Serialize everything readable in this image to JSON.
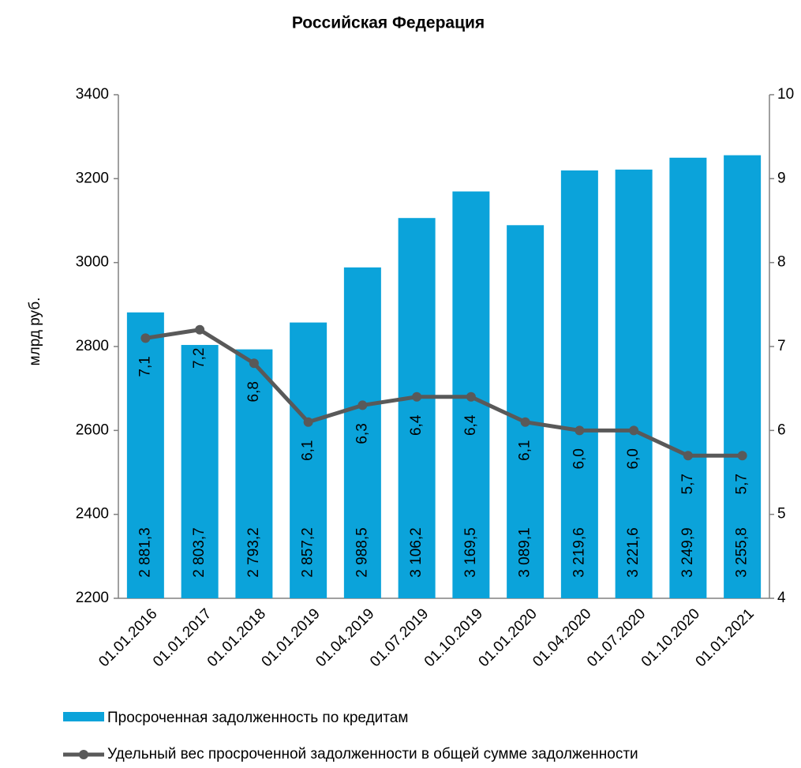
{
  "chart_data": {
    "type": "bar+line",
    "title": "Российская Федерация",
    "y_axis_label": "млрд руб.",
    "categories": [
      "01.01.2016",
      "01.01.2017",
      "01.01.2018",
      "01.01.2019",
      "01.04.2019",
      "01.07.2019",
      "01.10.2019",
      "01.01.2020",
      "01.04.2020",
      "01.07.2020",
      "01.10.2020",
      "01.01.2021"
    ],
    "series": [
      {
        "name": "Просроченная  задолженность по кредитам",
        "color": "#0ba3da",
        "type": "bar",
        "values": [
          2881.3,
          2803.7,
          2793.2,
          2857.2,
          2988.5,
          3106.2,
          3169.5,
          3089.1,
          3219.6,
          3221.6,
          3249.9,
          3255.8
        ],
        "value_labels": [
          "2 881,3",
          "2 803,7",
          "2 793,2",
          "2 857,2",
          "2 988,5",
          "3 106,2",
          "3 169,5",
          "3 089,1",
          "3 219,6",
          "3 221,6",
          "3 249,9",
          "3 255,8"
        ]
      },
      {
        "name": "Удельный вес просроченной  задолженности в общей сумме задолженности",
        "color": "#595959",
        "type": "line",
        "axis": "y2",
        "values": [
          7.1,
          7.2,
          6.8,
          6.1,
          6.3,
          6.4,
          6.4,
          6.1,
          6.0,
          6.0,
          5.7,
          5.7
        ],
        "value_labels": [
          "7,1",
          "7,2",
          "6,8",
          "6,1",
          "6,3",
          "6,4",
          "6,4",
          "6,1",
          "6,0",
          "6,0",
          "5,7",
          "5,7"
        ]
      }
    ],
    "ylim": [
      2200,
      3400
    ],
    "yticks": [
      2200,
      2400,
      2600,
      2800,
      3000,
      3200,
      3400
    ],
    "y2lim": [
      4,
      10
    ],
    "y2ticks": [
      4,
      5,
      6,
      7,
      8,
      9,
      10
    ]
  }
}
